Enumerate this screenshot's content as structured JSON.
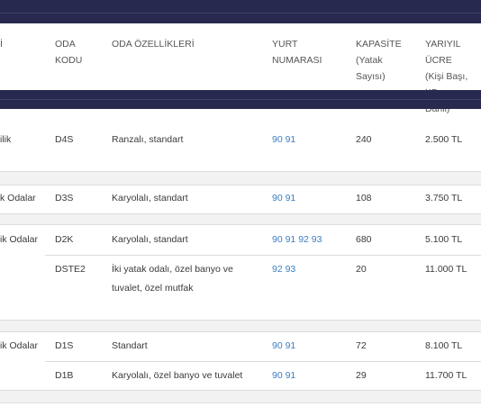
{
  "header": {
    "col0": "İ",
    "col1": "ODA\nKODU",
    "col2": "ODA ÖZELLİKLERİ",
    "col3": "YURT\nNUMARASI",
    "col4": "KAPASİTE\n(Yatak\nSayısı)",
    "col5": "YARIYIL ÜCRE\n(Kişi Başı, KD\nDahil)"
  },
  "rows": [
    {
      "group": "ilik",
      "code": "D4S",
      "features": "Ranzalı, standart",
      "dorm": "90 91",
      "capacity": "240",
      "price": "2.500 TL"
    },
    {
      "group": "k Odalar",
      "code": "D3S",
      "features": "Karyolalı, standart",
      "dorm": "90 91",
      "capacity": "108",
      "price": "3.750 TL"
    },
    {
      "group": "ik Odalar",
      "code": "D2K",
      "features": "Karyolalı, standart",
      "dorm": "90 91 92 93",
      "capacity": "680",
      "price": "5.100 TL"
    },
    {
      "group": "",
      "code": "DSTE2",
      "features": "İki yatak odalı, özel banyo ve tuvalet, özel mutfak",
      "dorm": "92 93",
      "capacity": "20",
      "price": "11.000 TL"
    },
    {
      "group": "ik Odalar",
      "code": "D1S",
      "features": "Standart",
      "dorm": "90 91",
      "capacity": "72",
      "price": "8.100 TL"
    },
    {
      "group": "",
      "code": "D1B",
      "features": "Karyolalı, özel banyo ve tuvalet",
      "dorm": "90 91",
      "capacity": "29",
      "price": "11.700 TL"
    }
  ]
}
